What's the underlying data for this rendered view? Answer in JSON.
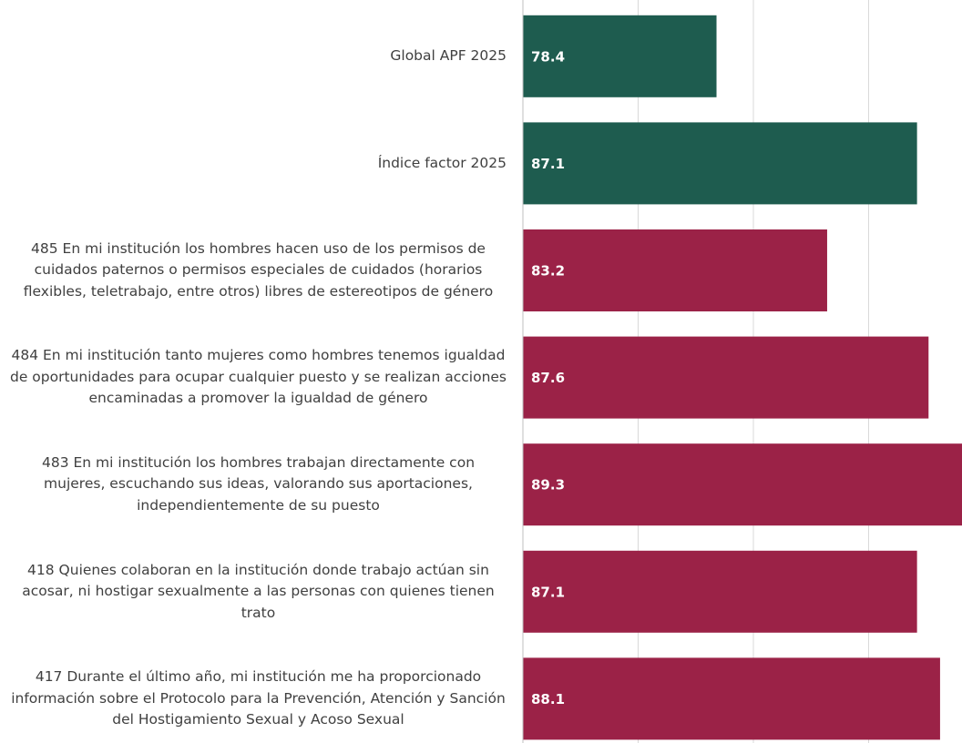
{
  "chart_data": {
    "type": "hbar",
    "categories": [
      "Global APF 2025",
      "Índice factor 2025",
      "485 En mi institución los hombres hacen uso de los permisos de cuidados paternos o permisos especiales de cuidados (horarios flexibles, teletrabajo, entre otros) libres de estereotipos de género",
      "484 En mi institución tanto mujeres como hombres tenemos igualdad de oportunidades para ocupar cualquier puesto y se realizan acciones encaminadas a promover la igualdad de género",
      "483 En mi institución los hombres trabajan directamente con mujeres, escuchando sus ideas, valorando sus aportaciones, independientemente de su puesto",
      "418 Quienes colaboran en la institución donde trabajo actúan sin acosar, ni hostigar sexualmente a las personas con quienes tienen trato",
      "417  Durante el último año, mi institución me ha proporcionado información sobre el Protocolo para la Prevención, Atención y Sanción del Hostigamiento Sexual y Acoso Sexual"
    ],
    "values": [
      78.4,
      87.1,
      83.2,
      87.6,
      89.3,
      87.1,
      88.1
    ],
    "colors": [
      "#1e5c4f",
      "#1e5c4f",
      "#9b2247",
      "#9b2247",
      "#9b2247",
      "#9b2247",
      "#9b2247"
    ],
    "xlim": [
      70,
      90
    ],
    "xticks": [
      70,
      75,
      80,
      85,
      90
    ],
    "grid": true
  }
}
